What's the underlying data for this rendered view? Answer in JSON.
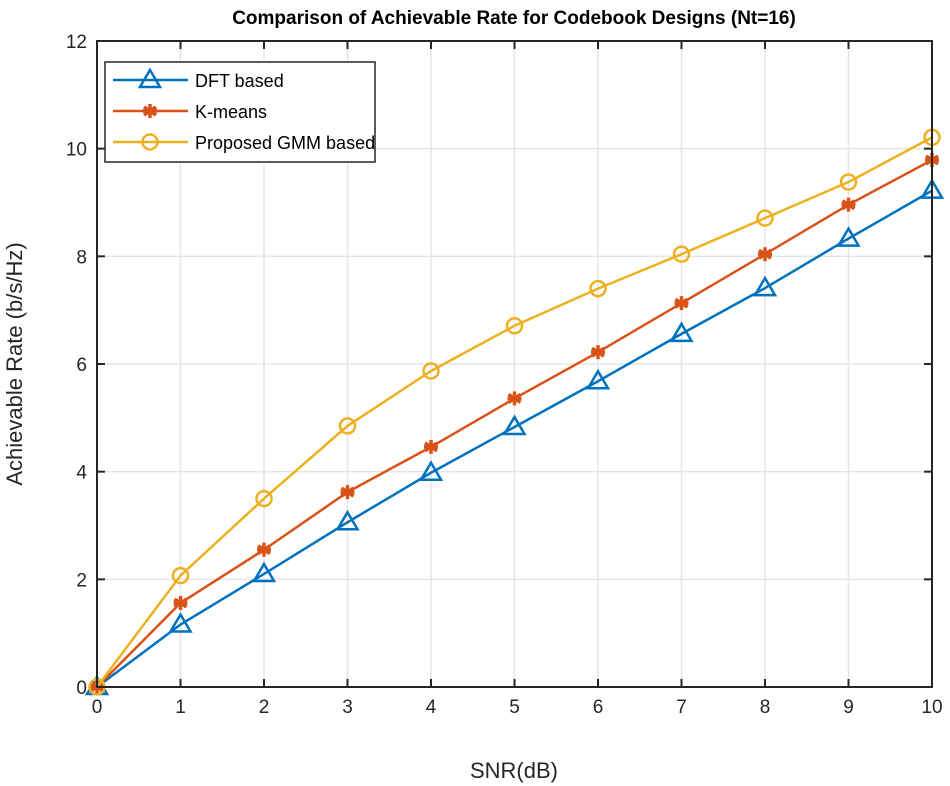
{
  "chart_data": {
    "type": "line",
    "title": "Comparison of Achievable Rate for Codebook Designs (Nt=16)",
    "xlabel": "SNR(dB)",
    "ylabel": "Achievable Rate (b/s/Hz)",
    "xlim": [
      0,
      10
    ],
    "ylim": [
      0,
      12
    ],
    "xticks": [
      0,
      1,
      2,
      3,
      4,
      5,
      6,
      7,
      8,
      9,
      10
    ],
    "yticks": [
      0,
      2,
      4,
      6,
      8,
      10,
      12
    ],
    "grid": true,
    "legend_position": "top-left",
    "x": [
      0,
      1,
      2,
      3,
      4,
      5,
      6,
      7,
      8,
      9,
      10
    ],
    "series": [
      {
        "name": "DFT based",
        "color": "#0072BD",
        "marker": "triangle",
        "values": [
          0,
          1.16,
          2.1,
          3.06,
          3.98,
          4.83,
          5.68,
          6.56,
          7.41,
          8.33,
          9.22
        ]
      },
      {
        "name": "K-means",
        "color": "#D95319",
        "marker": "asterisk",
        "values": [
          0,
          1.56,
          2.55,
          3.62,
          4.46,
          5.36,
          6.22,
          7.13,
          8.04,
          8.96,
          9.79
        ]
      },
      {
        "name": "Proposed GMM based",
        "color": "#EDB120",
        "marker": "circle",
        "values": [
          0,
          2.07,
          3.5,
          4.85,
          5.87,
          6.71,
          7.4,
          8.04,
          8.71,
          9.38,
          10.21
        ]
      }
    ]
  }
}
